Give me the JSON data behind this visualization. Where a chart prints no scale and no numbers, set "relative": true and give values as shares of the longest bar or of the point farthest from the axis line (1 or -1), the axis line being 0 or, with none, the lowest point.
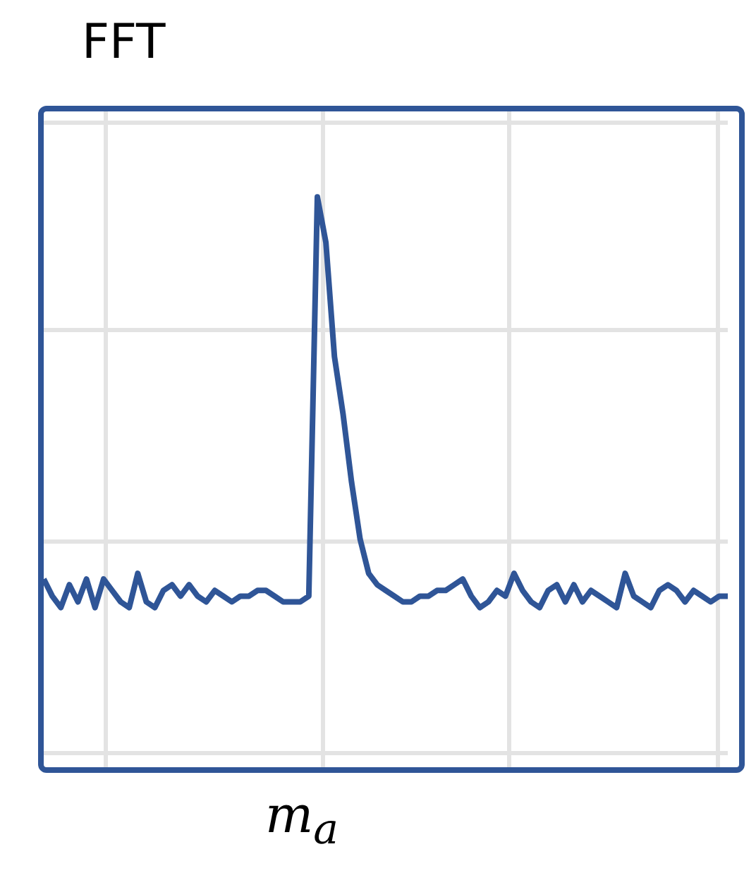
{
  "chart_data": {
    "type": "line",
    "title": "FFT",
    "xlabel": "m$_{a}$",
    "relative": true,
    "grid": true,
    "marker": "none",
    "line_style": "solid",
    "categories": [
      null,
      null,
      null,
      null,
      null,
      null,
      null,
      null,
      null,
      null,
      null,
      null,
      null,
      null,
      null,
      null,
      null,
      null,
      null,
      null,
      null,
      null,
      null,
      null,
      null,
      null,
      null,
      null,
      null,
      null,
      null,
      null,
      null,
      null,
      null,
      null,
      null,
      null,
      null,
      null,
      null,
      null,
      null,
      null,
      null,
      null,
      null,
      null,
      null,
      null,
      null,
      null,
      null,
      null,
      null,
      null,
      null,
      null,
      null,
      null,
      null,
      null,
      null,
      null,
      null,
      null,
      null,
      null,
      null,
      null,
      null,
      null,
      null,
      null,
      null,
      null,
      null,
      null,
      null,
      null,
      null
    ],
    "series": [
      {
        "color": "#2f5597",
        "values": [
          0.33,
          0.3,
          0.28,
          0.32,
          0.29,
          0.33,
          0.28,
          0.33,
          0.31,
          0.29,
          0.28,
          0.34,
          0.29,
          0.28,
          0.31,
          0.32,
          0.3,
          0.32,
          0.3,
          0.29,
          0.31,
          0.3,
          0.29,
          0.3,
          0.3,
          0.31,
          0.31,
          0.3,
          0.29,
          0.29,
          0.29,
          0.3,
          1.0,
          0.92,
          0.72,
          0.62,
          0.5,
          0.4,
          0.34,
          0.32,
          0.31,
          0.3,
          0.29,
          0.29,
          0.3,
          0.3,
          0.31,
          0.31,
          0.32,
          0.33,
          0.3,
          0.28,
          0.29,
          0.31,
          0.3,
          0.34,
          0.31,
          0.29,
          0.28,
          0.31,
          0.32,
          0.29,
          0.32,
          0.29,
          0.31,
          0.3,
          0.29,
          0.28,
          0.34,
          0.3,
          0.29,
          0.28,
          0.31,
          0.32,
          0.31,
          0.29,
          0.31,
          0.3,
          0.29,
          0.3,
          0.3
        ]
      }
    ]
  }
}
